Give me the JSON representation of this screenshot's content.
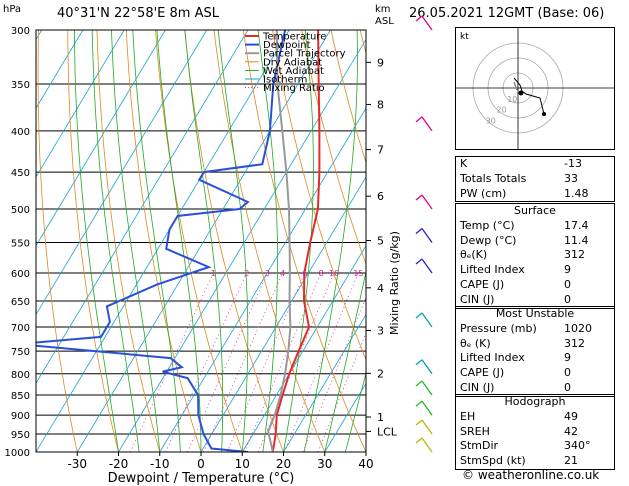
{
  "header": {
    "hpa_label": "hPa",
    "location": "40°31'N  22°58'E  8m  ASL",
    "km_label": "km",
    "asl_label": "ASL",
    "date": "26.05.2021  12GMT  (Base: 06)"
  },
  "chart_data": {
    "type": "skew-t",
    "xlabel": "Dewpoint / Temperature (°C)",
    "x_ticks": [
      -30,
      -20,
      -10,
      0,
      10,
      20,
      30,
      40
    ],
    "pressure_levels": [
      300,
      350,
      400,
      450,
      500,
      550,
      600,
      650,
      700,
      750,
      800,
      850,
      900,
      950,
      1000
    ],
    "ylim": [
      300,
      1000
    ],
    "xlim": [
      -40,
      40
    ],
    "km_ticks": [
      {
        "label": "9",
        "p": 329
      },
      {
        "label": "8",
        "p": 371
      },
      {
        "label": "7",
        "p": 422
      },
      {
        "label": "6",
        "p": 482
      },
      {
        "label": "5",
        "p": 547
      },
      {
        "label": "4",
        "p": 626
      },
      {
        "label": "3",
        "p": 707
      },
      {
        "label": "2",
        "p": 799
      },
      {
        "label": "1",
        "p": 905
      },
      {
        "label": "LCL",
        "p": 943
      }
    ],
    "mixing_ratio_label": "Mixing Ratio (g/kg)",
    "mixing_ratios": [
      "1",
      "2",
      "3",
      "4",
      "6",
      "8",
      "10",
      "15",
      "20",
      "25"
    ],
    "legend": [
      "Temperature",
      "Dewpoint",
      "Parcel Trajectory",
      "Dry Adiabat",
      "Wet Adiabat",
      "Isotherm",
      "Mixing Ratio"
    ],
    "series": [
      {
        "name": "Temperature",
        "color": "#e8292a",
        "points": [
          [
            300,
            -33
          ],
          [
            350,
            -25
          ],
          [
            400,
            -18
          ],
          [
            450,
            -12
          ],
          [
            500,
            -7
          ],
          [
            550,
            -4
          ],
          [
            600,
            -1
          ],
          [
            650,
            3
          ],
          [
            700,
            8
          ],
          [
            750,
            9
          ],
          [
            800,
            10
          ],
          [
            850,
            11.5
          ],
          [
            900,
            13
          ],
          [
            950,
            15.5
          ],
          [
            1000,
            17.4
          ]
        ]
      },
      {
        "name": "Dewpoint",
        "color": "#2a4fd8",
        "points": [
          [
            300,
            -41
          ],
          [
            350,
            -36
          ],
          [
            400,
            -30
          ],
          [
            440,
            -27
          ],
          [
            450,
            -40
          ],
          [
            460,
            -40
          ],
          [
            490,
            -25
          ],
          [
            500,
            -26
          ],
          [
            510,
            -40
          ],
          [
            530,
            -40
          ],
          [
            560,
            -38
          ],
          [
            590,
            -25
          ],
          [
            620,
            -35
          ],
          [
            660,
            -44
          ],
          [
            690,
            -41
          ],
          [
            720,
            -41
          ],
          [
            735,
            -60
          ],
          [
            765,
            -21
          ],
          [
            785,
            -17
          ],
          [
            795,
            -21
          ],
          [
            810,
            -14
          ],
          [
            850,
            -9
          ],
          [
            900,
            -6
          ],
          [
            950,
            -2
          ],
          [
            990,
            2
          ],
          [
            1000,
            11.4
          ]
        ]
      },
      {
        "name": "Parcel Trajectory",
        "color": "#999999",
        "points": [
          [
            300,
            -43
          ],
          [
            350,
            -35
          ],
          [
            400,
            -27
          ],
          [
            450,
            -20
          ],
          [
            500,
            -14
          ],
          [
            550,
            -9
          ],
          [
            600,
            -4.5
          ],
          [
            650,
            -0.5
          ],
          [
            700,
            3.5
          ],
          [
            750,
            6.5
          ],
          [
            800,
            9
          ],
          [
            850,
            11
          ],
          [
            900,
            12.5
          ],
          [
            943,
            13.3
          ],
          [
            1000,
            17.4
          ]
        ]
      }
    ],
    "wind_colors": [
      "#e6008e",
      "#2222cc",
      "#00a0b4",
      "#22bb22",
      "#b8b800"
    ]
  },
  "colors": {
    "temperature": "#e8292a",
    "dewpoint": "#2a4fd8",
    "parcel": "#999999",
    "dry_adiabat": "#d98b22",
    "wet_adiabat": "#22aa22",
    "isotherm": "#1aa3d6",
    "mixing_ratio": "#d4249a"
  },
  "hodograph": {
    "label": "kt",
    "rings": [
      "10",
      "20",
      "30"
    ]
  },
  "indices": [
    {
      "label": "K",
      "value": "-13"
    },
    {
      "label": "Totals Totals",
      "value": "33"
    },
    {
      "label": "PW (cm)",
      "value": "1.48"
    }
  ],
  "surface": {
    "title": "Surface",
    "rows": [
      {
        "label": "Temp (°C)",
        "value": "17.4"
      },
      {
        "label": "Dewp (°C)",
        "value": "11.4"
      },
      {
        "label": "θₑ(K)",
        "value": "312"
      },
      {
        "label": "Lifted Index",
        "value": "9"
      },
      {
        "label": "CAPE (J)",
        "value": "0"
      },
      {
        "label": "CIN (J)",
        "value": "0"
      }
    ]
  },
  "most_unstable": {
    "title": "Most Unstable",
    "rows": [
      {
        "label": "Pressure (mb)",
        "value": "1020"
      },
      {
        "label": "θₑ (K)",
        "value": "312"
      },
      {
        "label": "Lifted Index",
        "value": "9"
      },
      {
        "label": "CAPE (J)",
        "value": "0"
      },
      {
        "label": "CIN (J)",
        "value": "0"
      }
    ]
  },
  "hodograph_table": {
    "title": "Hodograph",
    "rows": [
      {
        "label": "EH",
        "value": "49"
      },
      {
        "label": "SREH",
        "value": "42"
      },
      {
        "label": "StmDir",
        "value": "340°"
      },
      {
        "label": "StmSpd (kt)",
        "value": "21"
      }
    ]
  },
  "credit": "© weatheronline.co.uk"
}
